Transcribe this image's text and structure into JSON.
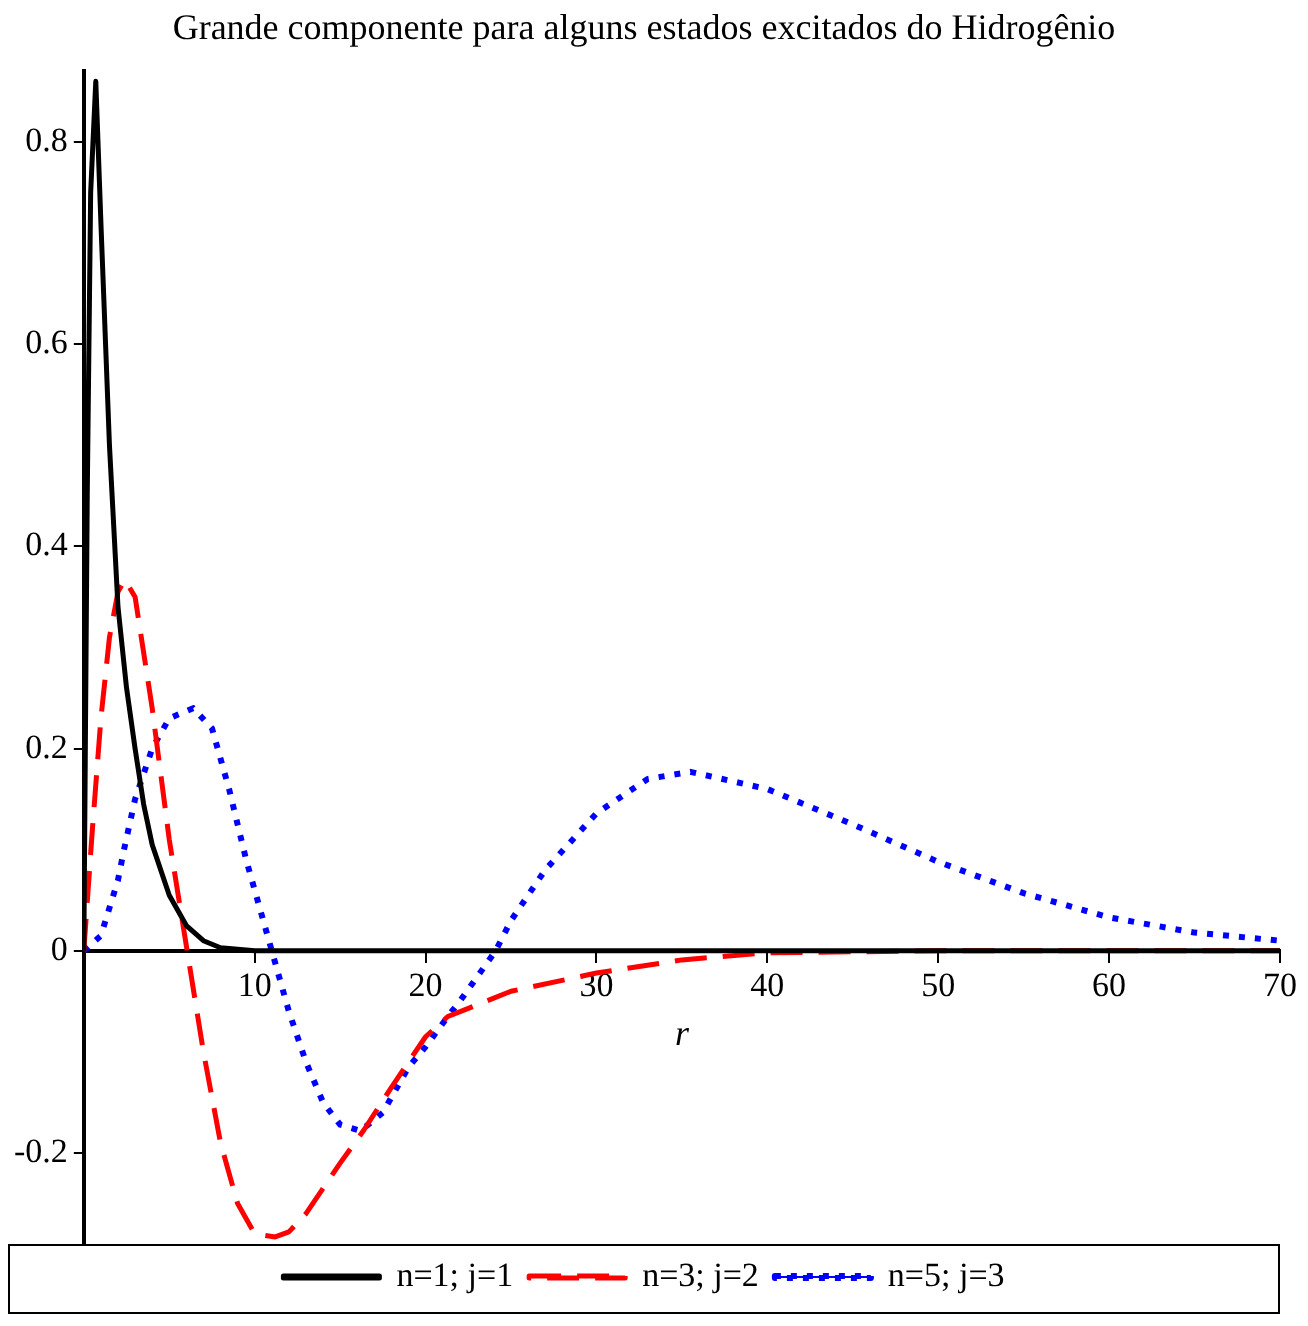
{
  "chart_data": {
    "type": "line",
    "title": "Grande componente para alguns estados excitados do Hidrogênio",
    "xlabel": "r",
    "xlim": [
      0,
      70
    ],
    "xticks": [
      10,
      20,
      30,
      40,
      50,
      60,
      70
    ],
    "ylim": [
      -0.29,
      0.87
    ],
    "yticks": [
      -0.2,
      0,
      0.2,
      0.4,
      0.6,
      0.8
    ],
    "grid": false,
    "legend": "bottom",
    "marker": "none",
    "series": [
      {
        "name": "n=1; j=1",
        "color": "#000000",
        "line_style": "solid",
        "x": [
          0,
          0.2,
          0.4,
          0.7,
          1,
          1.5,
          2,
          2.5,
          3,
          3.5,
          4,
          5,
          6,
          7,
          8,
          10,
          70
        ],
        "values": [
          0,
          0.45,
          0.75,
          0.86,
          0.72,
          0.5,
          0.34,
          0.26,
          0.2,
          0.145,
          0.105,
          0.055,
          0.025,
          0.01,
          0.003,
          0,
          0
        ]
      },
      {
        "name": "n=3; j=2",
        "color": "#ff0000",
        "line_style": "dashed",
        "x": [
          0,
          0.5,
          1,
          1.5,
          2,
          2.4,
          3,
          4,
          5,
          6,
          7,
          8,
          9,
          10,
          11.2,
          12,
          13,
          14,
          15,
          16.4,
          18,
          20,
          21.3,
          25,
          30,
          35,
          40,
          50,
          70
        ],
        "values": [
          0,
          0.12,
          0.23,
          0.31,
          0.355,
          0.367,
          0.35,
          0.24,
          0.11,
          0.005,
          -0.1,
          -0.19,
          -0.25,
          -0.28,
          -0.283,
          -0.278,
          -0.26,
          -0.235,
          -0.21,
          -0.177,
          -0.135,
          -0.085,
          -0.065,
          -0.04,
          -0.022,
          -0.009,
          -0.002,
          0,
          0
        ]
      },
      {
        "name": "n=5; j=3",
        "color": "#0000ff",
        "line_style": "dotted",
        "x": [
          0,
          1,
          2,
          2.35,
          3,
          4,
          5,
          6.4,
          7.5,
          8.5,
          9.5,
          11,
          12,
          13,
          14,
          15,
          16.2,
          17.5,
          19,
          20,
          21.3,
          22,
          24.1,
          25,
          27,
          30,
          33,
          35.5,
          40,
          45,
          50,
          55,
          60,
          65,
          70
        ],
        "values": [
          0,
          0.015,
          0.07,
          0.1,
          0.15,
          0.2,
          0.23,
          0.24,
          0.22,
          0.16,
          0.09,
          0,
          -0.06,
          -0.11,
          -0.15,
          -0.172,
          -0.178,
          -0.16,
          -0.115,
          -0.095,
          -0.065,
          -0.05,
          0,
          0.03,
          0.08,
          0.136,
          0.17,
          0.177,
          0.16,
          0.125,
          0.088,
          0.057,
          0.033,
          0.018,
          0.01
        ]
      }
    ]
  }
}
